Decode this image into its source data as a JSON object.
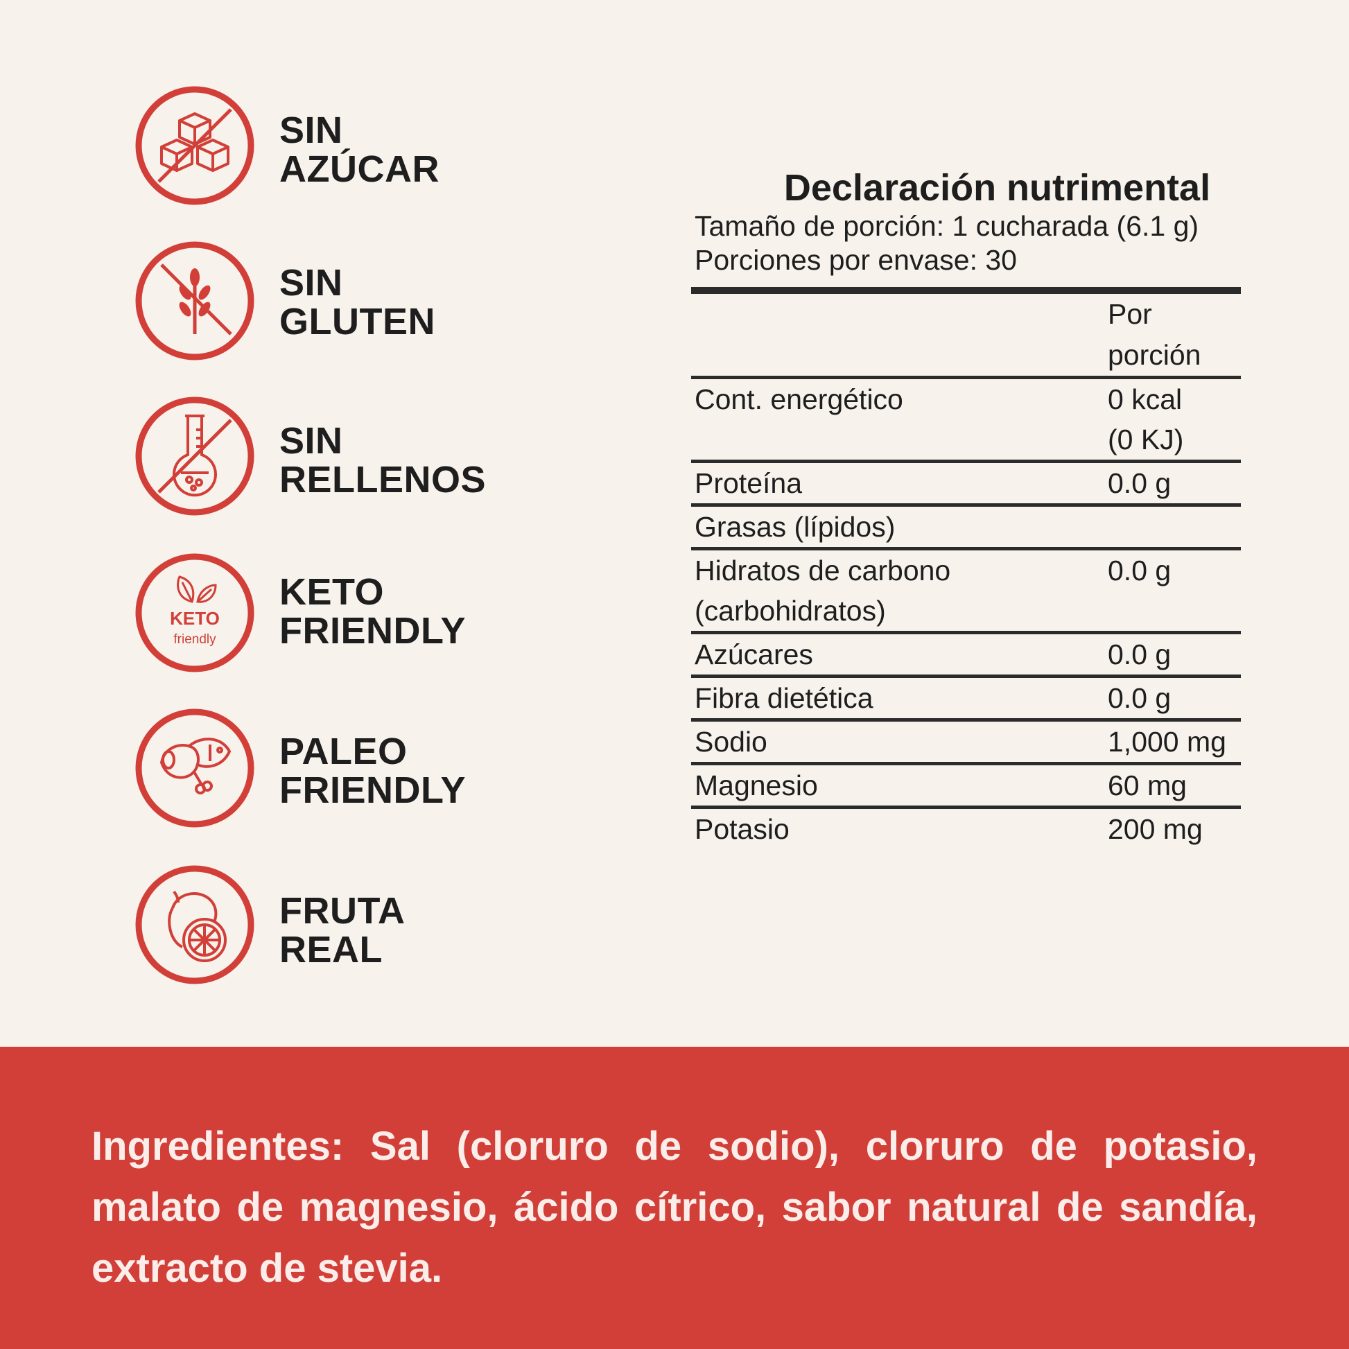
{
  "colors": {
    "accent": "#d13f38",
    "background": "#f7f2ec",
    "text": "#1e1e1e"
  },
  "badges": [
    {
      "icon": "no-sugar-cubes-icon",
      "line1": "SIN",
      "line2": "AZÚCAR"
    },
    {
      "icon": "no-gluten-wheat-icon",
      "line1": "SIN",
      "line2": "GLUTEN"
    },
    {
      "icon": "no-fillers-flask-icon",
      "line1": "SIN",
      "line2": "RELLENOS"
    },
    {
      "icon": "keto-friendly-leaves-icon",
      "line1": "KETO",
      "line2": "FRIENDLY",
      "icon_text": "KETO",
      "icon_subtext": "friendly"
    },
    {
      "icon": "paleo-meat-fish-icon",
      "line1": "PALEO",
      "line2": "FRIENDLY"
    },
    {
      "icon": "citrus-fruit-icon",
      "line1": "FRUTA",
      "line2": "REAL"
    }
  ],
  "nutrition": {
    "title": "Declaración nutrimental",
    "serving_size": "Tamaño de porción: 1 cucharada (6.1 g)",
    "servings_per_container": "Porciones por envase: 30",
    "column_header_1": "Por",
    "column_header_2": "porción",
    "rows": [
      {
        "name": "Cont. energético",
        "value": "0 kcal",
        "value2": "(0 KJ)"
      },
      {
        "name": "Proteína",
        "value": "0.0 g"
      },
      {
        "name": "Grasas (lípidos)",
        "value": ""
      },
      {
        "name": "Hidratos de carbono",
        "name2": "(carbohidratos)",
        "value": "0.0 g"
      },
      {
        "name": "Azúcares",
        "value": "0.0 g"
      },
      {
        "name": "Fibra dietética",
        "value": "0.0 g"
      },
      {
        "name": "Sodio",
        "value": "1,000 mg"
      },
      {
        "name": "Magnesio",
        "value": "60 mg"
      },
      {
        "name": "Potasio",
        "value": "200 mg"
      }
    ]
  },
  "ingredients": "Ingredientes: Sal (cloruro de sodio), cloruro de potasio, malato de magnesio, ácido cítrico, sabor natural de sandía, extracto de stevia."
}
